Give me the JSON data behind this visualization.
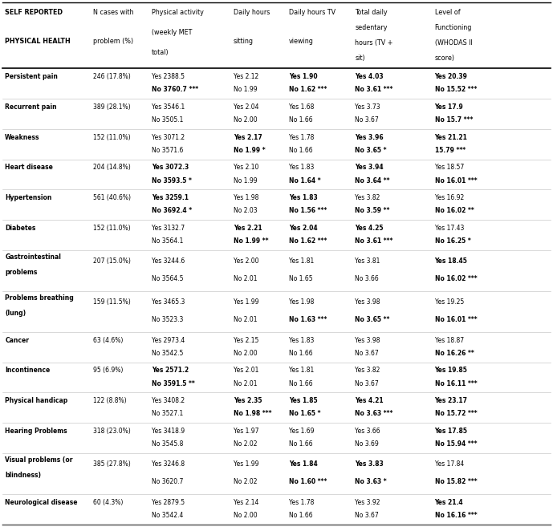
{
  "headers": [
    "SELF REPORTED\nPHYSICAL HEALTH",
    "N cases with\nproblem (%)",
    "Physical activity\n(weekly MET\ntotal)",
    "Daily hours\nsitting",
    "Daily hours TV\nviewing",
    "Total daily\nsedentary\nhours (TV +\nsit)",
    "Level of\nFunctioning\n(WHODAS II\nscore)"
  ],
  "rows": [
    {
      "condition": "Persistent pain",
      "n": "246 (17.8%)",
      "pa_yes": "Yes 2388.5",
      "pa_yes_bold": false,
      "pa_no": "No 3760.7 ***",
      "pa_no_bold": true,
      "sit_yes": "Yes 2.12",
      "sit_yes_bold": false,
      "sit_no": "No 1.99",
      "sit_no_bold": false,
      "tv_yes": "Yes 1.90",
      "tv_yes_bold": true,
      "tv_no": "No 1.62 ***",
      "tv_no_bold": true,
      "sed_yes": "Yes 4.03",
      "sed_yes_bold": true,
      "sed_no": "No 3.61 ***",
      "sed_no_bold": true,
      "lof_yes": "Yes 20.39",
      "lof_yes_bold": true,
      "lof_no": "No 15.52 ***",
      "lof_no_bold": true
    },
    {
      "condition": "Recurrent pain",
      "n": "389 (28.1%)",
      "pa_yes": "Yes 3546.1",
      "pa_yes_bold": false,
      "pa_no": "No 3505.1",
      "pa_no_bold": false,
      "sit_yes": "Yes 2.04",
      "sit_yes_bold": false,
      "sit_no": "No 2.00",
      "sit_no_bold": false,
      "tv_yes": "Yes 1.68",
      "tv_yes_bold": false,
      "tv_no": "No 1.66",
      "tv_no_bold": false,
      "sed_yes": "Yes 3.73",
      "sed_yes_bold": false,
      "sed_no": "No 3.67",
      "sed_no_bold": false,
      "lof_yes": "Yes 17.9",
      "lof_yes_bold": true,
      "lof_no": "No 15.7 ***",
      "lof_no_bold": true
    },
    {
      "condition": "Weakness",
      "n": "152 (11.0%)",
      "pa_yes": "Yes 3071.2",
      "pa_yes_bold": false,
      "pa_no": "No 3571.6",
      "pa_no_bold": false,
      "sit_yes": "Yes 2.17",
      "sit_yes_bold": true,
      "sit_no": "No 1.99 *",
      "sit_no_bold": true,
      "tv_yes": "Yes 1.78",
      "tv_yes_bold": false,
      "tv_no": "No 1.66",
      "tv_no_bold": false,
      "sed_yes": "Yes 3.96",
      "sed_yes_bold": true,
      "sed_no": "No 3.65 *",
      "sed_no_bold": true,
      "lof_yes": "Yes 21.21",
      "lof_yes_bold": true,
      "lof_no": "15.79 ***",
      "lof_no_bold": true
    },
    {
      "condition": "Heart disease",
      "n": "204 (14.8%)",
      "pa_yes": "Yes 3072.3",
      "pa_yes_bold": true,
      "pa_no": "No 3593.5 *",
      "pa_no_bold": true,
      "sit_yes": "Yes 2.10",
      "sit_yes_bold": false,
      "sit_no": "No 1.99",
      "sit_no_bold": false,
      "tv_yes": "Yes 1.83",
      "tv_yes_bold": false,
      "tv_no": "No 1.64 *",
      "tv_no_bold": true,
      "sed_yes": "Yes 3.94",
      "sed_yes_bold": true,
      "sed_no": "No 3.64 **",
      "sed_no_bold": true,
      "lof_yes": "Yes 18.57",
      "lof_yes_bold": false,
      "lof_no": "No 16.01 ***",
      "lof_no_bold": true
    },
    {
      "condition": "Hypertension",
      "n": "561 (40.6%)",
      "pa_yes": "Yes 3259.1",
      "pa_yes_bold": true,
      "pa_no": "No 3692.4 *",
      "pa_no_bold": true,
      "sit_yes": "Yes 1.98",
      "sit_yes_bold": false,
      "sit_no": "No 2.03",
      "sit_no_bold": false,
      "tv_yes": "Yes 1.83",
      "tv_yes_bold": true,
      "tv_no": "No 1.56 ***",
      "tv_no_bold": true,
      "sed_yes": "Yes 3.82",
      "sed_yes_bold": false,
      "sed_no": "No 3.59 **",
      "sed_no_bold": true,
      "lof_yes": "Yes 16.92",
      "lof_yes_bold": false,
      "lof_no": "No 16.02 **",
      "lof_no_bold": true
    },
    {
      "condition": "Diabetes",
      "n": "152 (11.0%)",
      "pa_yes": "Yes 3132.7",
      "pa_yes_bold": false,
      "pa_no": "No 3564.1",
      "pa_no_bold": false,
      "sit_yes": "Yes 2.21",
      "sit_yes_bold": true,
      "sit_no": "No 1.99 **",
      "sit_no_bold": true,
      "tv_yes": "Yes 2.04",
      "tv_yes_bold": true,
      "tv_no": "No 1.62 ***",
      "tv_no_bold": true,
      "sed_yes": "Yes 4.25",
      "sed_yes_bold": true,
      "sed_no": "No 3.61 ***",
      "sed_no_bold": true,
      "lof_yes": "Yes 17.43",
      "lof_yes_bold": false,
      "lof_no": "No 16.25 *",
      "lof_no_bold": true
    },
    {
      "condition": "Gastrointestinal\nproblems",
      "n": "207 (15.0%)",
      "pa_yes": "Yes 3244.6",
      "pa_yes_bold": false,
      "pa_no": "No 3564.5",
      "pa_no_bold": false,
      "sit_yes": "Yes 2.00",
      "sit_yes_bold": false,
      "sit_no": "No 2.01",
      "sit_no_bold": false,
      "tv_yes": "Yes 1.81",
      "tv_yes_bold": false,
      "tv_no": "No 1.65",
      "tv_no_bold": false,
      "sed_yes": "Yes 3.81",
      "sed_yes_bold": false,
      "sed_no": "No 3.66",
      "sed_no_bold": false,
      "lof_yes": "Yes 18.45",
      "lof_yes_bold": true,
      "lof_no": "No 16.02 ***",
      "lof_no_bold": true
    },
    {
      "condition": "Problems breathing\n(lung)",
      "n": "159 (11.5%)",
      "pa_yes": "Yes 3465.3",
      "pa_yes_bold": false,
      "pa_no": "No 3523.3",
      "pa_no_bold": false,
      "sit_yes": "Yes 1.99",
      "sit_yes_bold": false,
      "sit_no": "No 2.01",
      "sit_no_bold": false,
      "tv_yes": "Yes 1.98",
      "tv_yes_bold": false,
      "tv_no": "No 1.63 ***",
      "tv_no_bold": true,
      "sed_yes": "Yes 3.98",
      "sed_yes_bold": false,
      "sed_no": "No 3.65 **",
      "sed_no_bold": true,
      "lof_yes": "Yes 19.25",
      "lof_yes_bold": false,
      "lof_no": "No 16.01 ***",
      "lof_no_bold": true
    },
    {
      "condition": "Cancer",
      "n": "63 (4.6%)",
      "pa_yes": "Yes 2973.4",
      "pa_yes_bold": false,
      "pa_no": "No 3542.5",
      "pa_no_bold": false,
      "sit_yes": "Yes 2.15",
      "sit_yes_bold": false,
      "sit_no": "No 2.00",
      "sit_no_bold": false,
      "tv_yes": "Yes 1.83",
      "tv_yes_bold": false,
      "tv_no": "No 1.66",
      "tv_no_bold": false,
      "sed_yes": "Yes 3.98",
      "sed_yes_bold": false,
      "sed_no": "No 3.67",
      "sed_no_bold": false,
      "lof_yes": "Yes 18.87",
      "lof_yes_bold": false,
      "lof_no": "No 16.26 **",
      "lof_no_bold": true
    },
    {
      "condition": "Incontinence",
      "n": "95 (6.9%)",
      "pa_yes": "Yes 2571.2",
      "pa_yes_bold": true,
      "pa_no": "No 3591.5 **",
      "pa_no_bold": true,
      "sit_yes": "Yes 2.01",
      "sit_yes_bold": false,
      "sit_no": "No 2.01",
      "sit_no_bold": false,
      "tv_yes": "Yes 1.81",
      "tv_yes_bold": false,
      "tv_no": "No 1.66",
      "tv_no_bold": false,
      "sed_yes": "Yes 3.82",
      "sed_yes_bold": false,
      "sed_no": "No 3.67",
      "sed_no_bold": false,
      "lof_yes": "Yes 19.85",
      "lof_yes_bold": true,
      "lof_no": "No 16.11 ***",
      "lof_no_bold": true
    },
    {
      "condition": "Physical handicap",
      "n": "122 (8.8%)",
      "pa_yes": "Yes 3408.2",
      "pa_yes_bold": false,
      "pa_no": "No 3527.1",
      "pa_no_bold": false,
      "sit_yes": "Yes 2.35",
      "sit_yes_bold": true,
      "sit_no": "No 1.98 ***",
      "sit_no_bold": true,
      "tv_yes": "Yes 1.85",
      "tv_yes_bold": true,
      "tv_no": "No 1.65 *",
      "tv_no_bold": true,
      "sed_yes": "Yes 4.21",
      "sed_yes_bold": true,
      "sed_no": "No 3.63 ***",
      "sed_no_bold": true,
      "lof_yes": "Yes 23.17",
      "lof_yes_bold": true,
      "lof_no": "No 15.72 ***",
      "lof_no_bold": true
    },
    {
      "condition": "Hearing Problems",
      "n": "318 (23.0%)",
      "pa_yes": "Yes 3418.9",
      "pa_yes_bold": false,
      "pa_no": "No 3545.8",
      "pa_no_bold": false,
      "sit_yes": "Yes 1.97",
      "sit_yes_bold": false,
      "sit_no": "No 2.02",
      "sit_no_bold": false,
      "tv_yes": "Yes 1.69",
      "tv_yes_bold": false,
      "tv_no": "No 1.66",
      "tv_no_bold": false,
      "sed_yes": "Yes 3.66",
      "sed_yes_bold": false,
      "sed_no": "No 3.69",
      "sed_no_bold": false,
      "lof_yes": "Yes 17.85",
      "lof_yes_bold": true,
      "lof_no": "No 15.94 ***",
      "lof_no_bold": true
    },
    {
      "condition": "Visual problems (or\nblindness)",
      "n": "385 (27.8%)",
      "pa_yes": "Yes 3246.8",
      "pa_yes_bold": false,
      "pa_no": "No 3620.7",
      "pa_no_bold": false,
      "sit_yes": "Yes 1.99",
      "sit_yes_bold": false,
      "sit_no": "No 2.02",
      "sit_no_bold": false,
      "tv_yes": "Yes 1.84",
      "tv_yes_bold": true,
      "tv_no": "No 1.60 ***",
      "tv_no_bold": true,
      "sed_yes": "Yes 3.83",
      "sed_yes_bold": true,
      "sed_no": "No 3.63 *",
      "sed_no_bold": true,
      "lof_yes": "Yes 17.84",
      "lof_yes_bold": false,
      "lof_no": "No 15.82 ***",
      "lof_no_bold": true
    },
    {
      "condition": "Neurological disease",
      "n": "60 (4.3%)",
      "pa_yes": "Yes 2879.5",
      "pa_yes_bold": false,
      "pa_no": "No 3542.4",
      "pa_no_bold": false,
      "sit_yes": "Yes 2.14",
      "sit_yes_bold": false,
      "sit_no": "No 2.00",
      "sit_no_bold": false,
      "tv_yes": "Yes 1.78",
      "tv_yes_bold": false,
      "tv_no": "No 1.66",
      "tv_no_bold": false,
      "sed_yes": "Yes 3.92",
      "sed_yes_bold": false,
      "sed_no": "No 3.67",
      "sed_no_bold": false,
      "lof_yes": "Yes 21.4",
      "lof_yes_bold": true,
      "lof_no": "No 16.16 ***",
      "lof_no_bold": true
    }
  ],
  "fig_width": 6.89,
  "fig_height": 6.57,
  "font_size": 5.5,
  "header_font_size": 5.8,
  "bg_color": "#ffffff"
}
